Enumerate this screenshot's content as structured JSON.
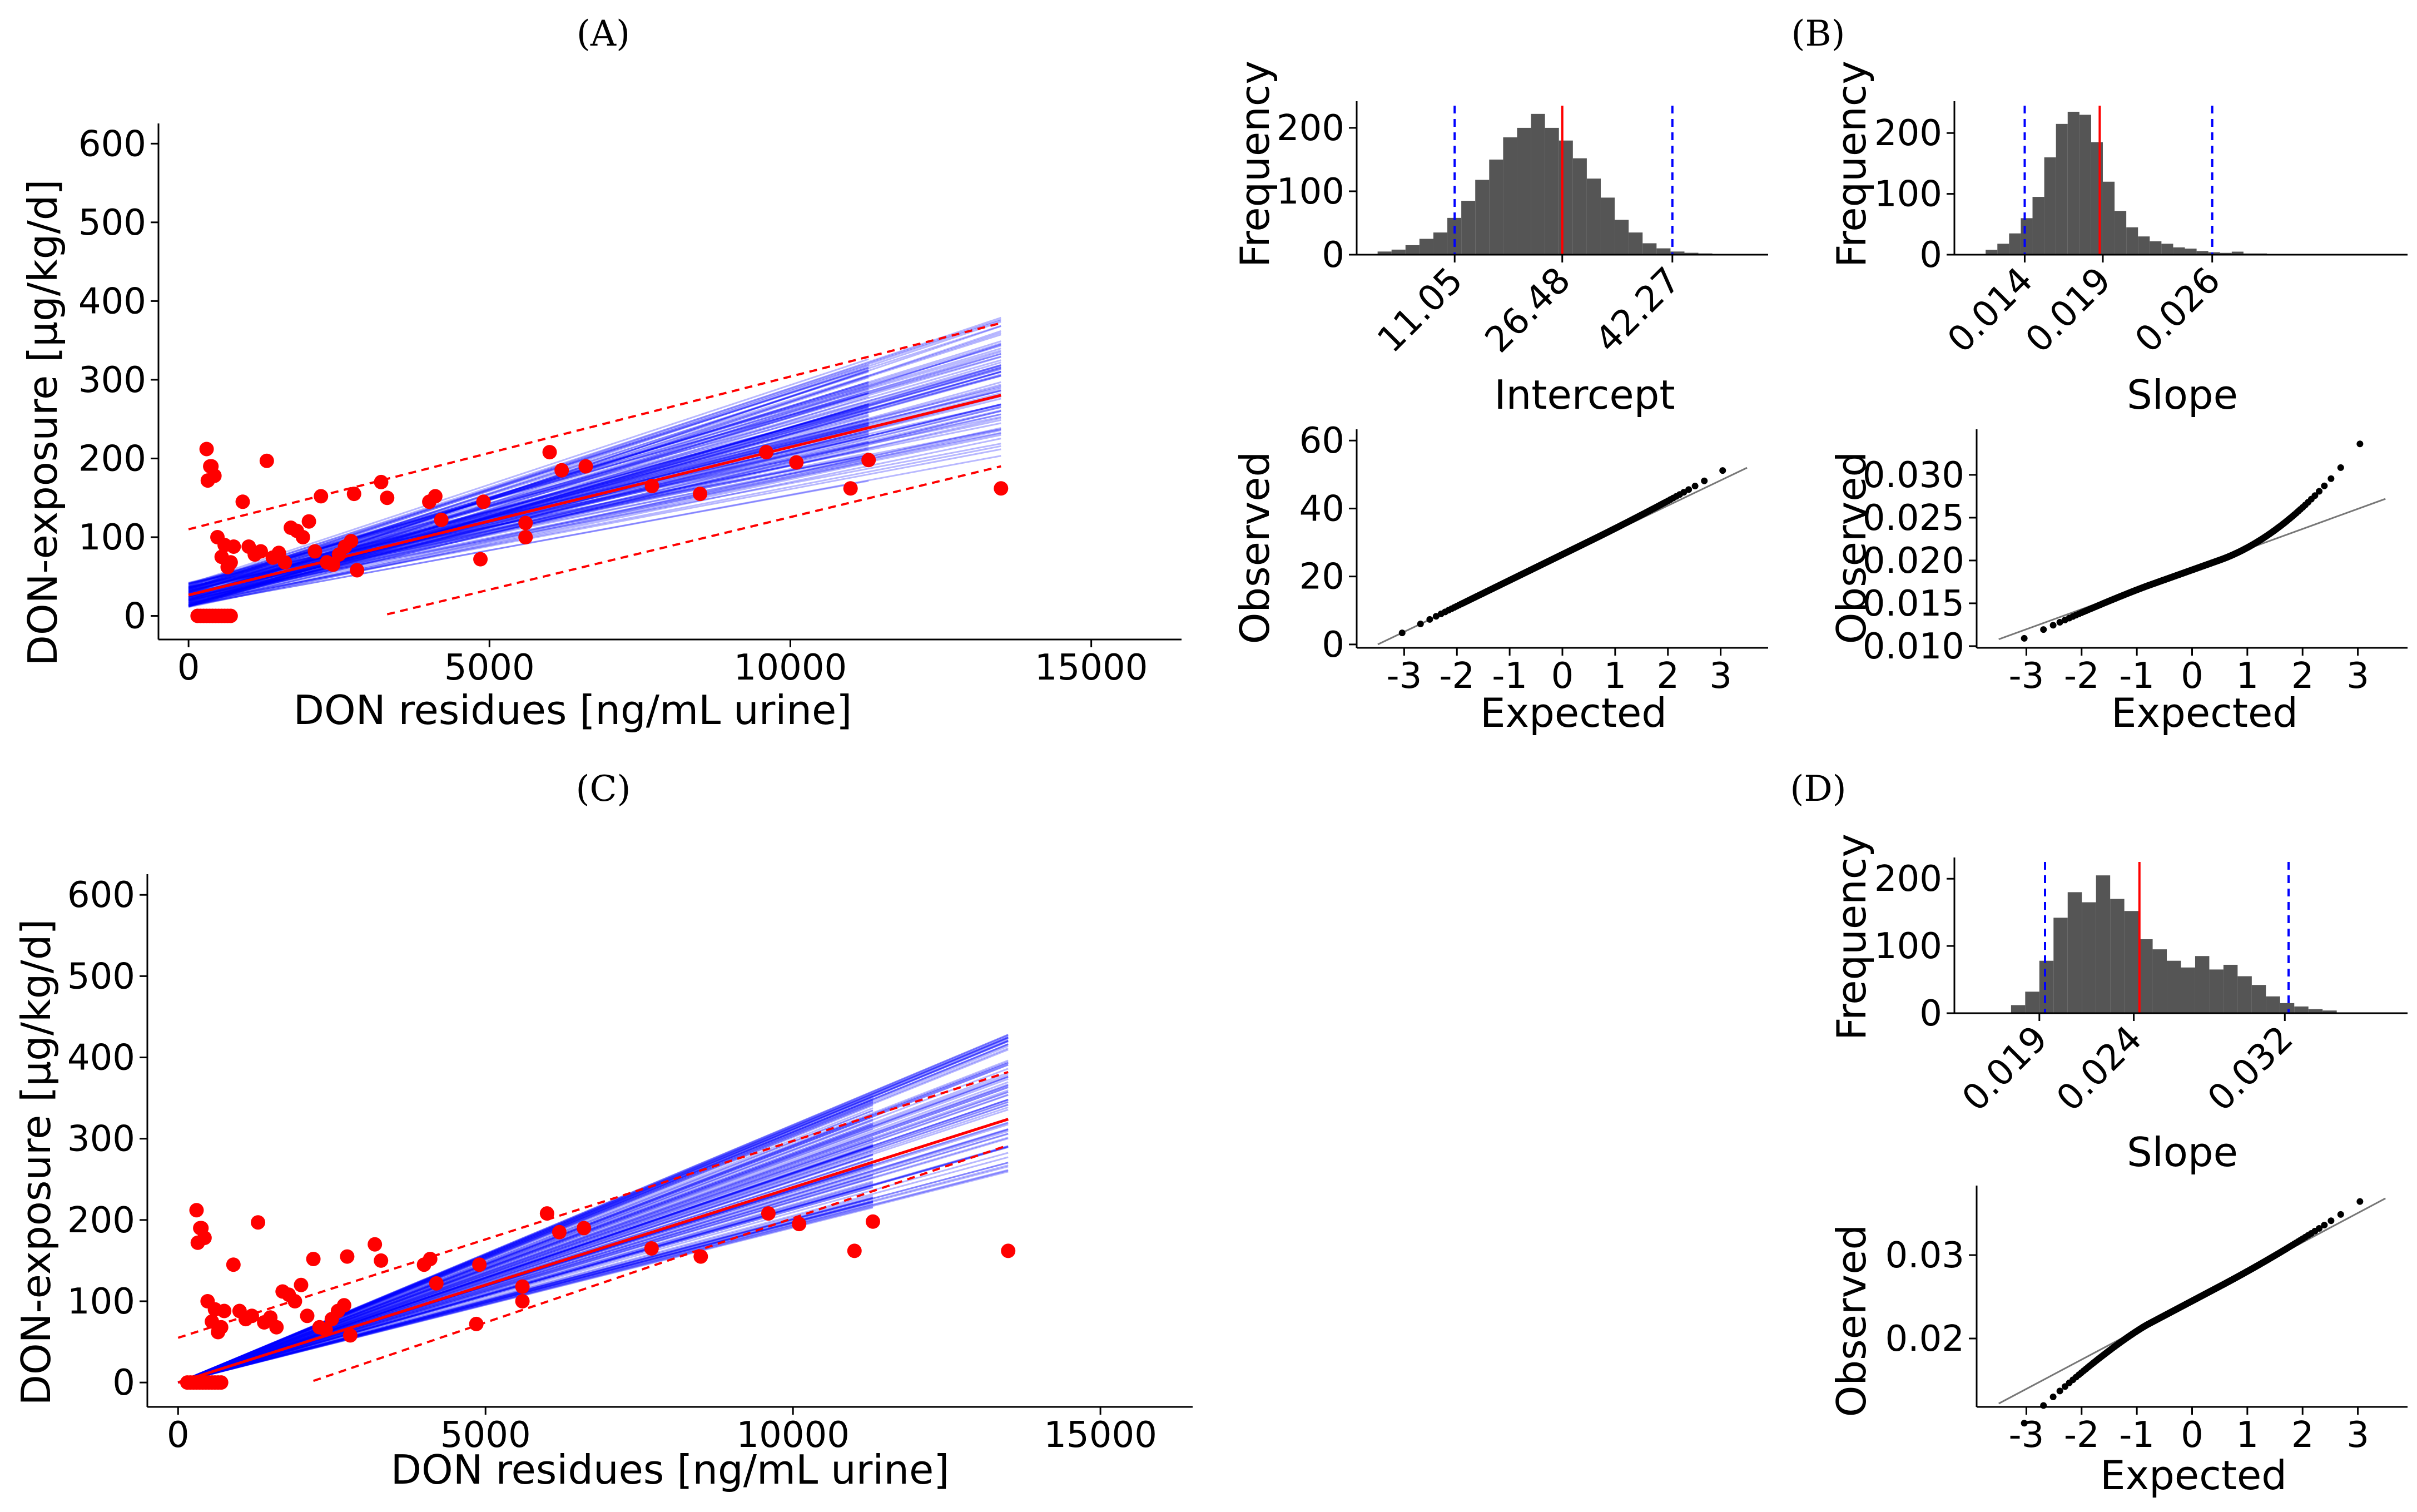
{
  "colors": {
    "points": "#ff0000",
    "fit": "#ff0000",
    "band": "#ff0000",
    "bootstrap": "#0000ff",
    "bars": "#555555",
    "ci_lines": "#0000ff",
    "median": "#ff0000",
    "qq_points": "#000000",
    "qq_ref": "#777777"
  },
  "chart_data": [
    {
      "id": "A",
      "panel_label": "(A)",
      "type": "scatter",
      "title": "",
      "xlabel": "DON residues [ng/mL urine]",
      "ylabel": "DON-exposure [µg/kg/d]",
      "xlim": [
        -500,
        16500
      ],
      "ylim": [
        -30,
        620
      ],
      "xticks": [
        0,
        5000,
        10000,
        15000
      ],
      "xtick_labels": [
        "0",
        "5000",
        "10000",
        "15000"
      ],
      "yticks": [
        0,
        100,
        200,
        300,
        400,
        500,
        600
      ],
      "ytick_labels": [
        "0",
        "100",
        "200",
        "300",
        "400",
        "500",
        "600"
      ],
      "fit": {
        "intercept": 26.48,
        "slope": 0.0188,
        "x_range": [
          0,
          13500
        ]
      },
      "pred_band": {
        "lower": {
          "x": [
            3300,
            13500
          ],
          "y": [
            2,
            190
          ]
        },
        "upper": {
          "x": [
            0,
            13500
          ],
          "y": [
            110,
            372
          ]
        }
      },
      "bootstrap": {
        "count": 140,
        "intercept_ci": [
          11.05,
          42.27
        ],
        "slope_ci": [
          0.014,
          0.026
        ],
        "x_ends": [
          11300,
          13500
        ]
      },
      "points": [
        [
          150,
          0
        ],
        [
          250,
          0
        ],
        [
          350,
          0
        ],
        [
          450,
          0
        ],
        [
          550,
          0
        ],
        [
          650,
          0
        ],
        [
          700,
          0
        ],
        [
          400,
          0
        ],
        [
          300,
          0
        ],
        [
          200,
          0
        ],
        [
          600,
          0
        ],
        [
          500,
          0
        ],
        [
          300,
          212
        ],
        [
          380,
          190
        ],
        [
          430,
          178
        ],
        [
          320,
          172
        ],
        [
          360,
          190
        ],
        [
          480,
          100
        ],
        [
          550,
          75
        ],
        [
          600,
          90
        ],
        [
          650,
          62
        ],
        [
          700,
          68
        ],
        [
          750,
          88
        ],
        [
          900,
          145
        ],
        [
          1000,
          88
        ],
        [
          1100,
          78
        ],
        [
          1200,
          82
        ],
        [
          1300,
          197
        ],
        [
          1400,
          74
        ],
        [
          1500,
          80
        ],
        [
          1600,
          68
        ],
        [
          1700,
          112
        ],
        [
          1800,
          108
        ],
        [
          1900,
          100
        ],
        [
          2000,
          120
        ],
        [
          2100,
          82
        ],
        [
          2200,
          152
        ],
        [
          2300,
          68
        ],
        [
          2400,
          65
        ],
        [
          2500,
          78
        ],
        [
          2600,
          88
        ],
        [
          2700,
          95
        ],
        [
          2750,
          155
        ],
        [
          2800,
          58
        ],
        [
          3200,
          170
        ],
        [
          3300,
          150
        ],
        [
          4000,
          145
        ],
        [
          4100,
          152
        ],
        [
          4200,
          122
        ],
        [
          4900,
          145
        ],
        [
          4850,
          72
        ],
        [
          5600,
          118
        ],
        [
          5600,
          100
        ],
        [
          6000,
          208
        ],
        [
          6200,
          185
        ],
        [
          6600,
          190
        ],
        [
          7700,
          165
        ],
        [
          8500,
          155
        ],
        [
          9600,
          208
        ],
        [
          10100,
          195
        ],
        [
          11000,
          162
        ],
        [
          11300,
          198
        ],
        [
          13500,
          162
        ]
      ]
    },
    {
      "id": "C",
      "panel_label": "(C)",
      "type": "scatter",
      "title": "",
      "xlabel": "DON residues [ng/mL urine]",
      "ylabel": "DON-exposure [µg/kg/d]",
      "xlim": [
        -500,
        16500
      ],
      "ylim": [
        -30,
        620
      ],
      "xticks": [
        0,
        5000,
        10000,
        15000
      ],
      "xtick_labels": [
        "0",
        "5000",
        "10000",
        "15000"
      ],
      "yticks": [
        0,
        100,
        200,
        300,
        400,
        500,
        600
      ],
      "ytick_labels": [
        "0",
        "100",
        "200",
        "300",
        "400",
        "500",
        "600"
      ],
      "fit": {
        "intercept": 0,
        "slope": 0.024,
        "x_range": [
          0,
          13500
        ]
      },
      "pred_band": {
        "lower": {
          "x": [
            2200,
            13500
          ],
          "y": [
            2,
            292
          ]
        },
        "upper": {
          "x": [
            0,
            13500
          ],
          "y": [
            55,
            382
          ]
        }
      },
      "bootstrap": {
        "count": 140,
        "intercept_ci": [
          0,
          0
        ],
        "slope_ci": [
          0.019,
          0.032
        ],
        "x_ends": [
          11300,
          13500
        ]
      },
      "points": [
        [
          150,
          0
        ],
        [
          250,
          0
        ],
        [
          350,
          0
        ],
        [
          450,
          0
        ],
        [
          550,
          0
        ],
        [
          650,
          0
        ],
        [
          700,
          0
        ],
        [
          400,
          0
        ],
        [
          300,
          0
        ],
        [
          200,
          0
        ],
        [
          600,
          0
        ],
        [
          500,
          0
        ],
        [
          300,
          212
        ],
        [
          380,
          190
        ],
        [
          430,
          178
        ],
        [
          320,
          172
        ],
        [
          360,
          190
        ],
        [
          480,
          100
        ],
        [
          550,
          75
        ],
        [
          600,
          90
        ],
        [
          650,
          62
        ],
        [
          700,
          68
        ],
        [
          750,
          88
        ],
        [
          900,
          145
        ],
        [
          1000,
          88
        ],
        [
          1100,
          78
        ],
        [
          1200,
          82
        ],
        [
          1300,
          197
        ],
        [
          1400,
          74
        ],
        [
          1500,
          80
        ],
        [
          1600,
          68
        ],
        [
          1700,
          112
        ],
        [
          1800,
          108
        ],
        [
          1900,
          100
        ],
        [
          2000,
          120
        ],
        [
          2100,
          82
        ],
        [
          2200,
          152
        ],
        [
          2300,
          68
        ],
        [
          2400,
          65
        ],
        [
          2500,
          78
        ],
        [
          2600,
          88
        ],
        [
          2700,
          95
        ],
        [
          2750,
          155
        ],
        [
          2800,
          58
        ],
        [
          3200,
          170
        ],
        [
          3300,
          150
        ],
        [
          4000,
          145
        ],
        [
          4100,
          152
        ],
        [
          4200,
          122
        ],
        [
          4900,
          145
        ],
        [
          4850,
          72
        ],
        [
          5600,
          118
        ],
        [
          5600,
          100
        ],
        [
          6000,
          208
        ],
        [
          6200,
          185
        ],
        [
          6600,
          190
        ],
        [
          7700,
          165
        ],
        [
          8500,
          155
        ],
        [
          9600,
          208
        ],
        [
          10100,
          195
        ],
        [
          11000,
          162
        ],
        [
          11300,
          198
        ],
        [
          13500,
          162
        ]
      ]
    },
    {
      "id": "B1",
      "panel_label": "(B)",
      "type": "bar",
      "title": "",
      "xlabel": "Intercept",
      "ylabel": "Frequency",
      "xlim": [
        -3,
        56
      ],
      "ylim": [
        0,
        235
      ],
      "yticks": [
        0,
        100,
        200
      ],
      "ytick_labels": [
        "0",
        "100",
        "200"
      ],
      "xticks": [
        11.05,
        26.48,
        42.27
      ],
      "xtick_labels": [
        "11.05",
        "26.48",
        "42.27"
      ],
      "median": 26.48,
      "ci": [
        11.05,
        42.27
      ],
      "bin_start": 0,
      "bin_width": 2,
      "values": [
        5,
        8,
        15,
        25,
        35,
        58,
        85,
        118,
        150,
        185,
        200,
        222,
        200,
        180,
        152,
        120,
        90,
        55,
        35,
        18,
        10,
        5,
        3,
        2
      ]
    },
    {
      "id": "B2",
      "panel_label": "",
      "type": "bar",
      "title": "",
      "xlabel": "Slope",
      "ylabel": "Frequency",
      "xlim": [
        0.0095,
        0.0385
      ],
      "ylim": [
        0,
        245
      ],
      "yticks": [
        0,
        100,
        200
      ],
      "ytick_labels": [
        "0",
        "100",
        "200"
      ],
      "xticks": [
        0.014,
        0.019,
        0.026
      ],
      "xtick_labels": [
        "0.014",
        "0.019",
        "0.026"
      ],
      "median": 0.0188,
      "ci": [
        0.014,
        0.026
      ],
      "bin_start": 0.0115,
      "bin_width": 0.00075,
      "values": [
        8,
        18,
        35,
        60,
        95,
        160,
        215,
        235,
        230,
        185,
        120,
        72,
        45,
        30,
        22,
        18,
        12,
        10,
        6,
        4,
        3,
        5,
        2,
        2,
        1
      ]
    },
    {
      "id": "D1",
      "panel_label": "(D)",
      "type": "bar",
      "title": "",
      "xlabel": "Slope",
      "ylabel": "Frequency",
      "xlim": [
        0.0145,
        0.0385
      ],
      "ylim": [
        0,
        225
      ],
      "yticks": [
        0,
        100,
        200
      ],
      "ytick_labels": [
        "0",
        "100",
        "200"
      ],
      "xticks": [
        0.019,
        0.024,
        0.032
      ],
      "xtick_labels": [
        "0.019",
        "0.024",
        "0.032"
      ],
      "median": 0.0243,
      "ci": [
        0.0193,
        0.0322
      ],
      "bin_start": 0.0175,
      "bin_width": 0.00075,
      "values": [
        12,
        32,
        78,
        142,
        180,
        165,
        205,
        170,
        152,
        110,
        95,
        78,
        68,
        85,
        65,
        72,
        55,
        42,
        25,
        15,
        10,
        6,
        4
      ]
    },
    {
      "id": "B3",
      "panel_label": "",
      "type": "scatter",
      "title": "",
      "xlabel": "Expected",
      "ylabel": "Observed",
      "xlim": [
        -3.9,
        3.9
      ],
      "ylim": [
        -1,
        62
      ],
      "xticks": [
        -3,
        -2,
        -1,
        0,
        1,
        2,
        3
      ],
      "xtick_labels": [
        "-3",
        "-2",
        "-1",
        "0",
        "1",
        "2",
        "3"
      ],
      "yticks": [
        0,
        20,
        40,
        60
      ],
      "ytick_labels": [
        "0",
        "20",
        "40",
        "60"
      ],
      "qq": {
        "center": 26.48,
        "scale": 7.6,
        "upper_tail_coef": 0.25,
        "lower_tail_coef": 0,
        "n": 420,
        "ref": {
          "x": [
            -3.5,
            3.5
          ],
          "y": [
            0,
            52
          ]
        }
      }
    },
    {
      "id": "B4",
      "panel_label": "",
      "type": "scatter",
      "title": "",
      "xlabel": "Expected",
      "ylabel": "Observed",
      "xlim": [
        -3.9,
        3.9
      ],
      "ylim": [
        0.0098,
        0.0348
      ],
      "xticks": [
        -3,
        -2,
        -1,
        0,
        1,
        2,
        3
      ],
      "xtick_labels": [
        "-3",
        "-2",
        "-1",
        "0",
        "1",
        "2",
        "3"
      ],
      "yticks": [
        0.01,
        0.015,
        0.02,
        0.025,
        0.03
      ],
      "ytick_labels": [
        "0.010",
        "0.015",
        "0.020",
        "0.025",
        "0.030"
      ],
      "qq": {
        "center": 0.0189,
        "scale": 0.0023,
        "upper_tail_coef": 0.0012,
        "lower_tail_coef": -0.0003,
        "n": 420,
        "ref": {
          "x": [
            -3.5,
            3.5
          ],
          "y": [
            0.0108,
            0.0272
          ]
        }
      }
    },
    {
      "id": "D2",
      "panel_label": "",
      "type": "scatter",
      "title": "",
      "xlabel": "Expected",
      "ylabel": "Observed",
      "xlim": [
        -3.9,
        3.9
      ],
      "ylim": [
        0.0118,
        0.0378
      ],
      "xticks": [
        -3,
        -2,
        -1,
        0,
        1,
        2,
        3
      ],
      "xtick_labels": [
        "-3",
        "-2",
        "-1",
        "0",
        "1",
        "2",
        "3"
      ],
      "yticks": [
        0.02,
        0.03
      ],
      "ytick_labels": [
        "0.02",
        "0.03"
      ],
      "qq": {
        "center": 0.0245,
        "scale": 0.0035,
        "upper_tail_coef": 0.0002,
        "lower_tail_coef": -0.0012,
        "n": 420,
        "ref": {
          "x": [
            -3.5,
            3.5
          ],
          "y": [
            0.0122,
            0.0368
          ]
        }
      }
    }
  ]
}
